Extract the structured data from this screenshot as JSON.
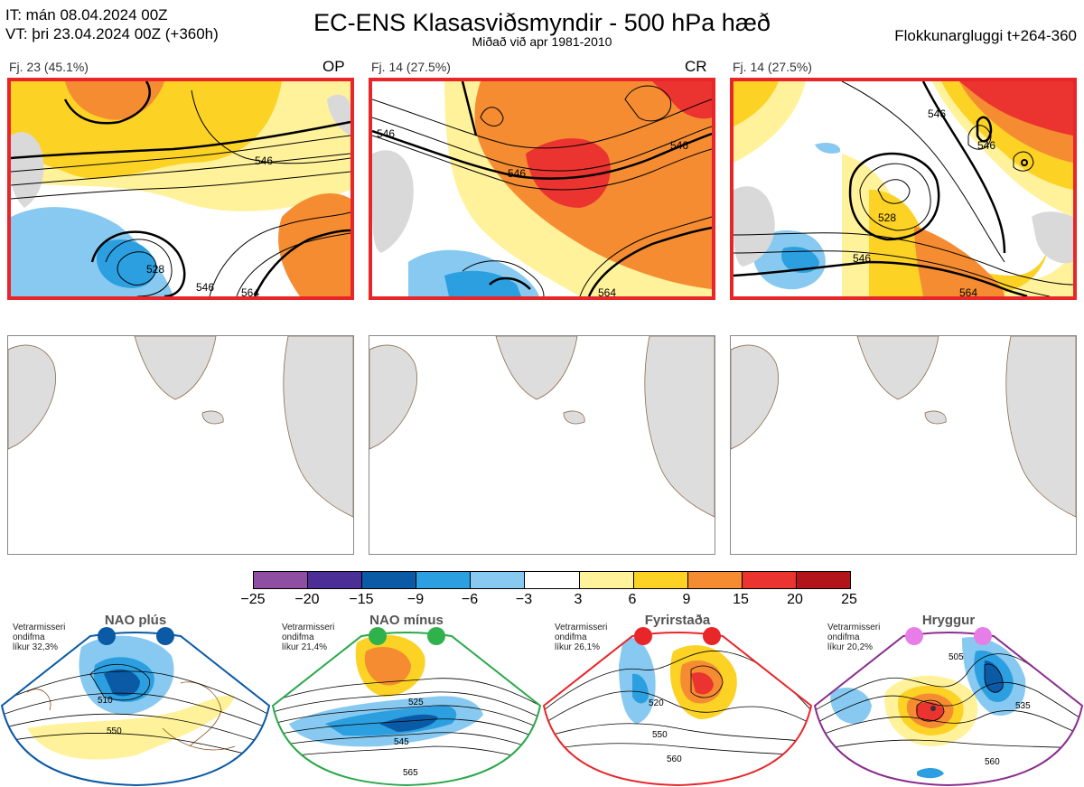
{
  "header": {
    "init_time": "IT: mán 08.04.2024 00Z",
    "valid_time": "VT: þri 23.04.2024 00Z  (+360h)",
    "title": "EC-ENS Klasasviðsmyndir - 500 hPa hæð",
    "subtitle": "Miðað við apr 1981-2010",
    "window": "Flokkunargluggi t+264-360"
  },
  "panels": [
    {
      "label": "Fj. 23 (45.1%)",
      "tag": "OP"
    },
    {
      "label": "Fj. 14 (27.5%)",
      "tag": "CR"
    },
    {
      "label": "Fj. 14 (27.5%)",
      "tag": ""
    }
  ],
  "contour_labels": {
    "p1": [
      "546",
      "528",
      "546",
      "564"
    ],
    "p2": [
      "546",
      "546",
      "546",
      "564"
    ],
    "p3": [
      "546",
      "528",
      "546",
      "564",
      "546"
    ]
  },
  "colorbar": {
    "colors": [
      "#8e4fa2",
      "#4b2f96",
      "#0b5aa5",
      "#2b9fe0",
      "#87c9f0",
      "#ffffff",
      "#fff29a",
      "#fcd225",
      "#f58c32",
      "#eb3330",
      "#b31419"
    ],
    "ticks": [
      "−25",
      "−20",
      "−15",
      "−9",
      "−6",
      "−3",
      "3",
      "6",
      "9",
      "15",
      "20",
      "25"
    ]
  },
  "regimes": [
    {
      "name": "NAO plús",
      "note": [
        "Vetrarmisseri",
        "ondifma",
        "líkur 32,3%"
      ],
      "color": "#0b5aa5",
      "dot_color": "#0b5aa5",
      "contours": [
        "510",
        "550"
      ]
    },
    {
      "name": "NAO mínus",
      "note": [
        "Vetrarmisseri",
        "ondifma",
        "líkur 21,4%"
      ],
      "color": "#2aa84a",
      "dot_color": "#2fb24c",
      "contours": [
        "525",
        "545",
        "565"
      ]
    },
    {
      "name": "Fyrirstaða",
      "note": [
        "Vetrarmisseri",
        "ondifma",
        "líkur 26,1%"
      ],
      "color": "#e8262a",
      "dot_color": "#e8262a",
      "contours": [
        "520",
        "550",
        "560"
      ]
    },
    {
      "name": "Hryggur",
      "note": [
        "Vetrarmisseri",
        "ondifma",
        "líkur 20,2%"
      ],
      "color": "#8a2e8e",
      "dot_color": "#e77ee8",
      "contours": [
        "505",
        "535",
        "560"
      ]
    }
  ]
}
